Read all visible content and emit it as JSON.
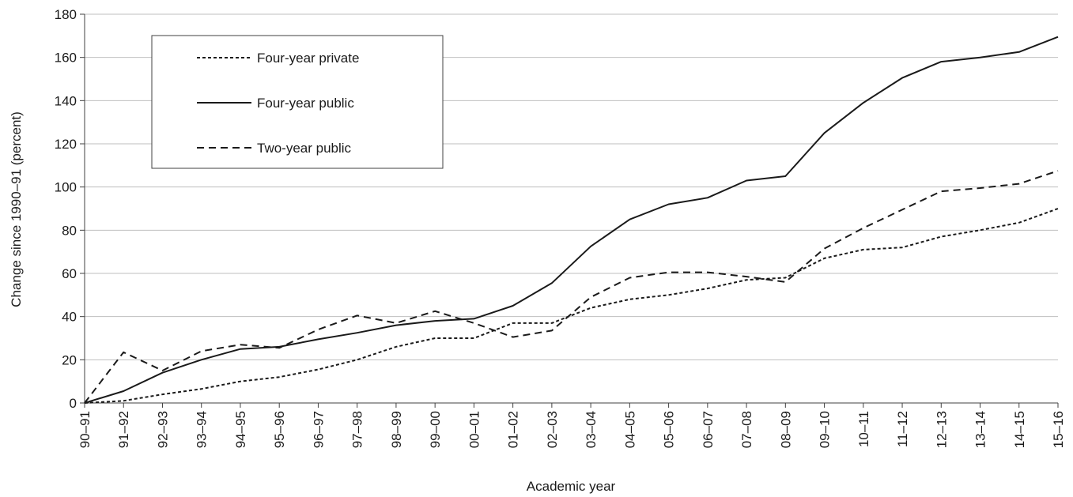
{
  "chart_data": {
    "type": "line",
    "title": "",
    "xlabel": "Academic year",
    "ylabel": "Change since 1990–91 (percent)",
    "ylim": [
      0,
      180
    ],
    "yticks": [
      0,
      20,
      40,
      60,
      80,
      100,
      120,
      140,
      160,
      180
    ],
    "grid": "horizontal",
    "legend_position": "top-left",
    "categories": [
      "90–91",
      "91–92",
      "92–93",
      "93–94",
      "94–95",
      "95–96",
      "96–97",
      "97–98",
      "98–99",
      "99–00",
      "00–01",
      "01–02",
      "02–03",
      "03–04",
      "04–05",
      "05–06",
      "06–07",
      "07–08",
      "08–09",
      "09–10",
      "10–11",
      "11–12",
      "12–13",
      "13–14",
      "14–15",
      "15–16"
    ],
    "series": [
      {
        "name": "Four-year private",
        "style": "dotted",
        "values": [
          0,
          1,
          4,
          6.5,
          10,
          12,
          15.5,
          20,
          26,
          30,
          30,
          37,
          37,
          44,
          48,
          50,
          53,
          57,
          58,
          67,
          71,
          72,
          77,
          80,
          83.5,
          90
        ]
      },
      {
        "name": "Four-year public",
        "style": "solid",
        "values": [
          0,
          5.5,
          14,
          20,
          25,
          26,
          29.5,
          32.5,
          36,
          38,
          39,
          45,
          55.5,
          72.5,
          85,
          92,
          95,
          103,
          105,
          125,
          139,
          150.5,
          158,
          160,
          162.5,
          169.5
        ]
      },
      {
        "name": "Two-year public",
        "style": "dashed",
        "values": [
          0,
          23.5,
          15,
          24,
          27,
          25.5,
          34,
          40.5,
          37,
          42.5,
          37,
          30.5,
          33.5,
          49,
          58,
          60.5,
          60.5,
          58.5,
          56,
          71.5,
          81,
          89.5,
          98,
          99.5,
          101.5,
          107.5
        ]
      }
    ]
  },
  "colors": {
    "line": "#1a1a1a",
    "grid": "#bfbfbf",
    "axis": "#404040",
    "background": "#ffffff"
  }
}
